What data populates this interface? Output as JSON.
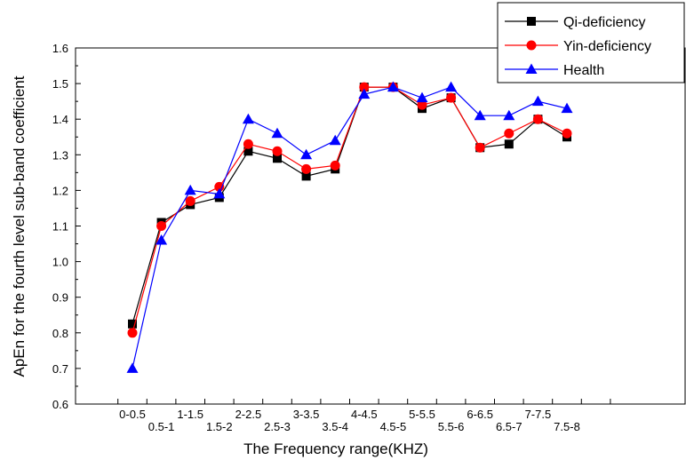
{
  "chart_data": {
    "type": "line",
    "xlabel": "The Frequency range(KHZ)",
    "ylabel": "ApEn for the fourth level sub-band coefficient",
    "ylim": [
      0.6,
      1.6
    ],
    "yticks": [
      "0.6",
      "0.7",
      "0.8",
      "0.9",
      "1.0",
      "1.1",
      "1.2",
      "1.3",
      "1.4",
      "1.5",
      "1.6"
    ],
    "categories": [
      "0-0.5",
      "0.5-1",
      "1-1.5",
      "1.5-2",
      "2-2.5",
      "2.5-3",
      "3-3.5",
      "3.5-4",
      "4-4.5",
      "4.5-5",
      "5-5.5",
      "5.5-6",
      "6-6.5",
      "6.5-7",
      "7-7.5",
      "7.5-8"
    ],
    "grid": false,
    "legend_position": "top-right",
    "series": [
      {
        "name": "Qi-deficiency",
        "color": "#000000",
        "marker": "square",
        "values": [
          0.825,
          1.11,
          1.16,
          1.18,
          1.31,
          1.29,
          1.24,
          1.26,
          1.49,
          1.49,
          1.43,
          1.46,
          1.32,
          1.33,
          1.4,
          1.35
        ]
      },
      {
        "name": "Yin-deficiency",
        "color": "#ff0000",
        "marker": "circle",
        "values": [
          0.8,
          1.1,
          1.17,
          1.21,
          1.33,
          1.31,
          1.26,
          1.27,
          1.49,
          1.49,
          1.44,
          1.46,
          1.32,
          1.36,
          1.4,
          1.36
        ]
      },
      {
        "name": "Health",
        "color": "#0000ff",
        "marker": "triangle",
        "values": [
          0.7,
          1.06,
          1.2,
          1.19,
          1.4,
          1.36,
          1.3,
          1.34,
          1.47,
          1.49,
          1.46,
          1.49,
          1.41,
          1.41,
          1.45,
          1.43
        ]
      }
    ]
  }
}
